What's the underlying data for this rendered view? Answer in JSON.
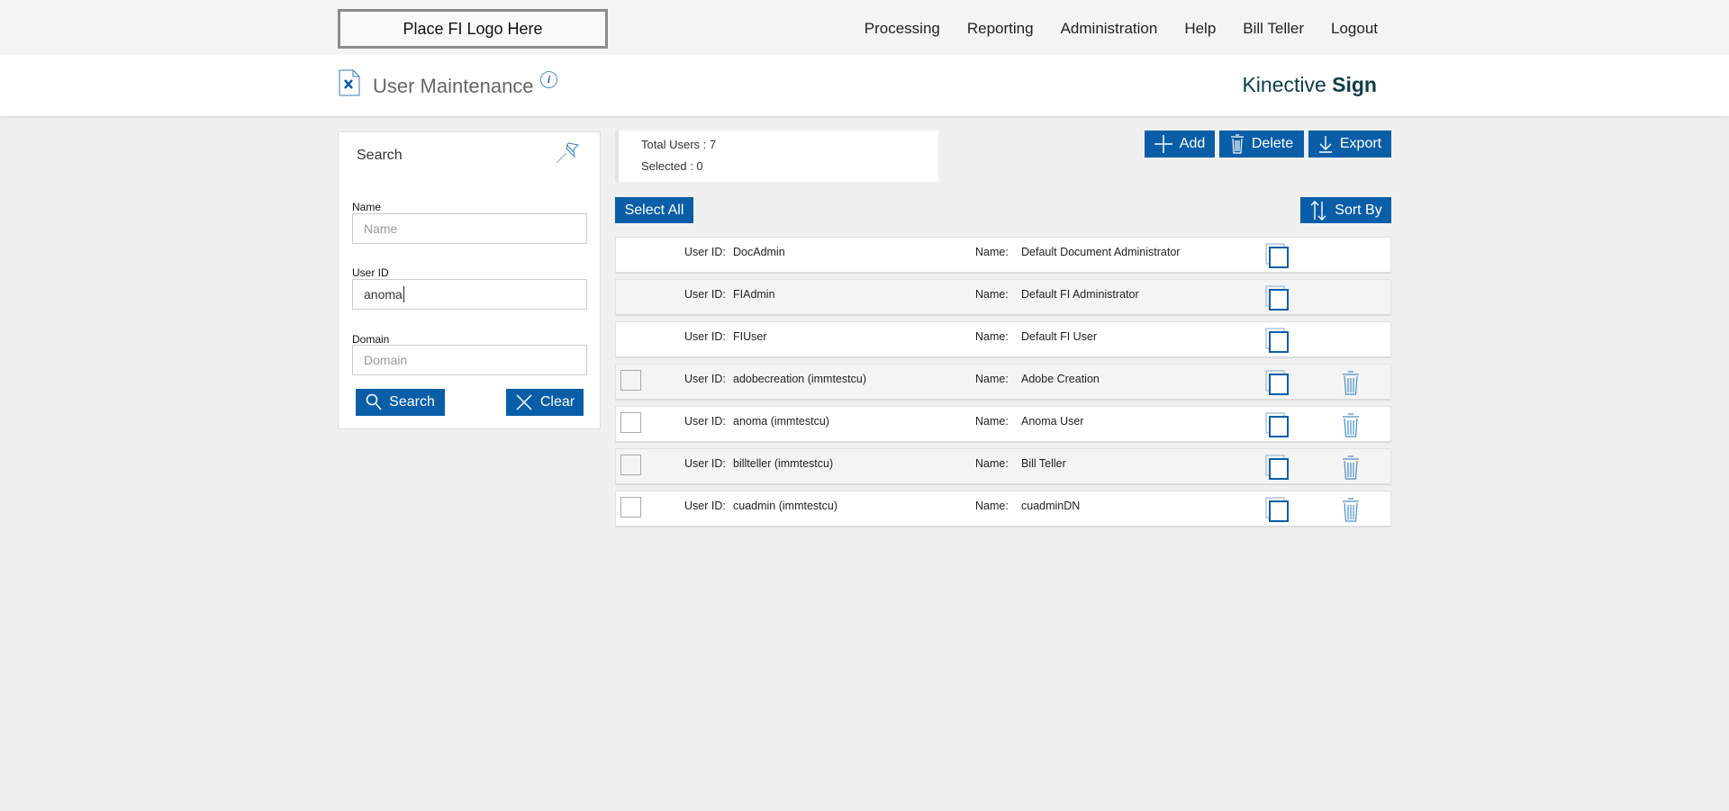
{
  "header": {
    "logo_text": "Place FI Logo Here",
    "nav": [
      "Processing",
      "Reporting",
      "Administration",
      "Help",
      "Bill Teller",
      "Logout"
    ]
  },
  "titlebar": {
    "title": "User Maintenance",
    "brand_regular": "Kinective",
    "brand_bold": "Sign"
  },
  "search": {
    "title": "Search",
    "name_label": "Name",
    "name_placeholder": "Name",
    "name_value": "",
    "userid_label": "User ID",
    "userid_value": "anoma",
    "domain_label": "Domain",
    "domain_placeholder": "Domain",
    "search_button": "Search",
    "clear_button": "Clear"
  },
  "summary": {
    "total": "Total Users : 7",
    "selected": "Selected : 0"
  },
  "toolbar": {
    "add": "Add",
    "delete": "Delete",
    "export": "Export",
    "select_all": "Select All",
    "sort_by": "Sort By"
  },
  "row_labels": {
    "user_id": "User ID:",
    "name": "Name:"
  },
  "users": [
    {
      "user_id": "DocAdmin",
      "name": "Default Document Administrator",
      "selectable": false
    },
    {
      "user_id": "FIAdmin",
      "name": "Default FI Administrator",
      "selectable": false
    },
    {
      "user_id": "FIUser",
      "name": "Default FI User",
      "selectable": false
    },
    {
      "user_id": "adobecreation (immtestcu)",
      "name": "Adobe Creation",
      "selectable": true
    },
    {
      "user_id": "anoma (immtestcu)",
      "name": "Anoma User",
      "selectable": true
    },
    {
      "user_id": "billteller (immtestcu)",
      "name": "Bill Teller",
      "selectable": true
    },
    {
      "user_id": "cuadmin (immtestcu)",
      "name": "cuadminDN",
      "selectable": true
    }
  ],
  "colors": {
    "accent": "#0a5ea8",
    "brand": "#0e3d45"
  }
}
